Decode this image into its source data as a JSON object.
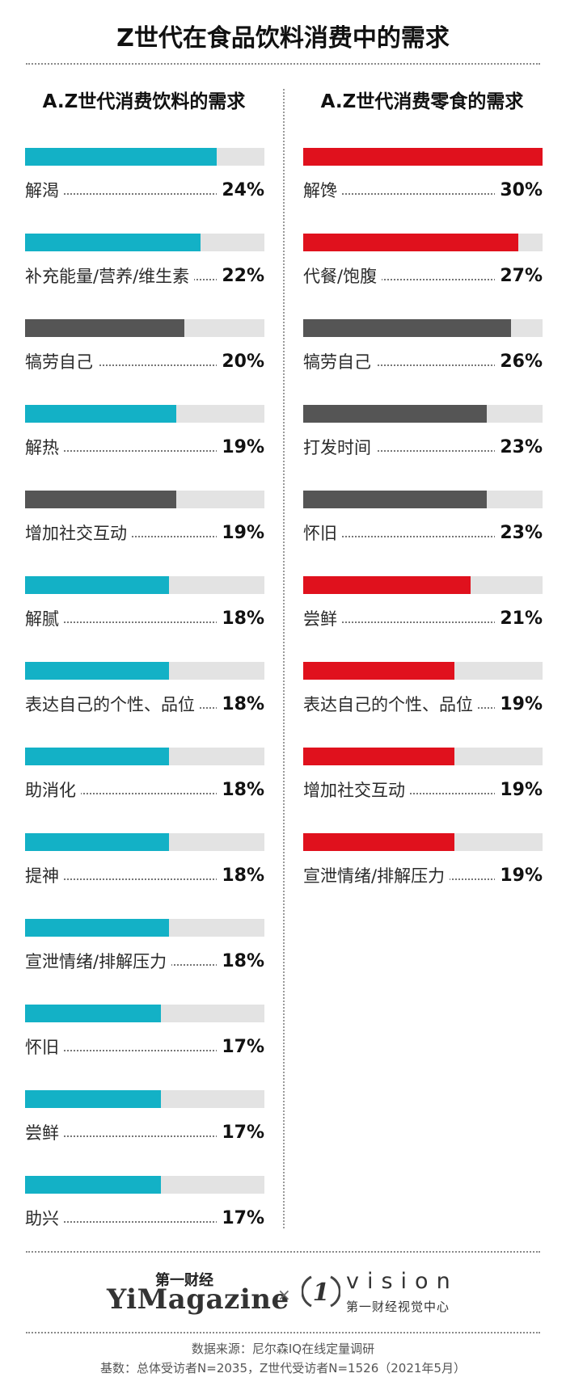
{
  "header": {
    "title": "Z世代在食品饮料消费中的需求"
  },
  "chart_data": [
    {
      "type": "bar",
      "title": "A.Z世代消费饮料的需求",
      "title_prefix": "A",
      "title_rest": ".Z世代消费饮料的需求",
      "xlim": [
        0,
        30
      ],
      "items": [
        {
          "label": "解渴",
          "value": 24,
          "pct": "24%",
          "color": "#13b1c6"
        },
        {
          "label": "补充能量/营养/维生素",
          "value": 22,
          "pct": "22%",
          "color": "#13b1c6"
        },
        {
          "label": "犒劳自己",
          "value": 20,
          "pct": "20%",
          "color": "#555555"
        },
        {
          "label": "解热",
          "value": 19,
          "pct": "19%",
          "color": "#13b1c6"
        },
        {
          "label": "增加社交互动",
          "value": 19,
          "pct": "19%",
          "color": "#555555"
        },
        {
          "label": "解腻",
          "value": 18,
          "pct": "18%",
          "color": "#13b1c6"
        },
        {
          "label": "表达自己的个性、品位",
          "value": 18,
          "pct": "18%",
          "color": "#13b1c6"
        },
        {
          "label": "助消化",
          "value": 18,
          "pct": "18%",
          "color": "#13b1c6"
        },
        {
          "label": "提神",
          "value": 18,
          "pct": "18%",
          "color": "#13b1c6"
        },
        {
          "label": "宣泄情绪/排解压力",
          "value": 18,
          "pct": "18%",
          "color": "#13b1c6"
        },
        {
          "label": "怀旧",
          "value": 17,
          "pct": "17%",
          "color": "#13b1c6"
        },
        {
          "label": "尝鲜",
          "value": 17,
          "pct": "17%",
          "color": "#13b1c6"
        },
        {
          "label": "助兴",
          "value": 17,
          "pct": "17%",
          "color": "#13b1c6"
        }
      ]
    },
    {
      "type": "bar",
      "title": "A.Z世代消费零食的需求",
      "title_prefix": "A",
      "title_rest": ".Z世代消费零食的需求",
      "xlim": [
        0,
        30
      ],
      "items": [
        {
          "label": "解馋",
          "value": 30,
          "pct": "30%",
          "color": "#e0111d"
        },
        {
          "label": "代餐/饱腹",
          "value": 27,
          "pct": "27%",
          "color": "#e0111d"
        },
        {
          "label": "犒劳自己",
          "value": 26,
          "pct": "26%",
          "color": "#555555"
        },
        {
          "label": "打发时间",
          "value": 23,
          "pct": "23%",
          "color": "#555555"
        },
        {
          "label": "怀旧",
          "value": 23,
          "pct": "23%",
          "color": "#555555"
        },
        {
          "label": "尝鲜",
          "value": 21,
          "pct": "21%",
          "color": "#e0111d"
        },
        {
          "label": "表达自己的个性、品位",
          "value": 19,
          "pct": "19%",
          "color": "#e0111d"
        },
        {
          "label": "增加社交互动",
          "value": 19,
          "pct": "19%",
          "color": "#e0111d"
        },
        {
          "label": "宣泄情绪/排解压力",
          "value": 19,
          "pct": "19%",
          "color": "#e0111d"
        }
      ]
    }
  ],
  "footer": {
    "brand1_cn": "第一财经",
    "brand1_en": "YiMagazine",
    "separator": "×",
    "brand2_mark": "1",
    "brand2_en": "vision",
    "brand2_cn": "第一财经视觉中心",
    "source_line1": "数据来源：尼尔森IQ在线定量调研",
    "source_line2": "基数：总体受访者N=2035，Z世代受访者N=1526（2021年5月）"
  }
}
